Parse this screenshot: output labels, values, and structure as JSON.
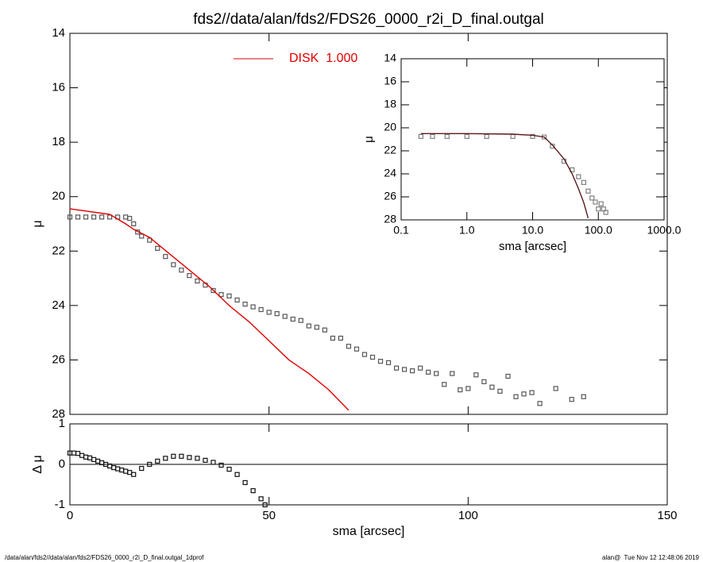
{
  "footer": {
    "left": "/data/alan/fds2//data/alan/fds2/FDS26_0000_r2i_D_final.outgal_1dprof",
    "right": "alan@  Tue Nov 12 12:48:06 2019"
  },
  "chart_data": [
    {
      "type": "line",
      "title": "fds2//data/alan/fds2/FDS26_0000_r2i_D_final.outgal",
      "ylabel": "μ",
      "xlim": [
        0,
        150
      ],
      "ylim": [
        28,
        14
      ],
      "yticks": [
        14,
        16,
        18,
        20,
        22,
        24,
        26,
        28
      ],
      "legend": "top",
      "series": [
        {
          "style": "square",
          "color": "#555555",
          "x": [
            0,
            2,
            4,
            6,
            8,
            10,
            12,
            14,
            15,
            16,
            17,
            18,
            20,
            22,
            24,
            26,
            28,
            30,
            32,
            34,
            36,
            38,
            40,
            42,
            44,
            46,
            48,
            50,
            52,
            54,
            56,
            58,
            60,
            62,
            64,
            66,
            68,
            70,
            72,
            74,
            76,
            78,
            80,
            82,
            84,
            86,
            88,
            90,
            92,
            94,
            96,
            98,
            100,
            102,
            104,
            106,
            108,
            110,
            112,
            114,
            116,
            118,
            122,
            126,
            129
          ],
          "values": [
            20.75,
            20.75,
            20.75,
            20.75,
            20.75,
            20.75,
            20.75,
            20.75,
            20.8,
            21.0,
            21.3,
            21.45,
            21.6,
            21.9,
            22.2,
            22.5,
            22.7,
            22.9,
            23.1,
            23.25,
            23.45,
            23.6,
            23.65,
            23.8,
            23.95,
            24.05,
            24.15,
            24.25,
            24.3,
            24.4,
            24.5,
            24.55,
            24.75,
            24.8,
            24.9,
            25.2,
            25.2,
            25.5,
            25.6,
            25.8,
            25.9,
            26.05,
            26.1,
            26.3,
            26.35,
            26.4,
            26.3,
            26.45,
            26.5,
            26.9,
            26.5,
            27.1,
            27.05,
            26.55,
            26.8,
            27.0,
            27.15,
            26.6,
            27.35,
            27.25,
            27.2,
            27.6,
            27.05,
            27.45,
            27.35
          ]
        },
        {
          "name": "DISK  1.000",
          "style": "line",
          "color": "#e00000",
          "x": [
            0,
            5,
            10,
            14,
            16,
            20,
            25,
            30,
            35,
            40,
            45,
            50,
            55,
            60,
            65,
            70
          ],
          "values": [
            20.45,
            20.55,
            20.65,
            21.0,
            21.2,
            21.5,
            22.1,
            22.7,
            23.3,
            24.0,
            24.6,
            25.3,
            26.0,
            26.5,
            27.1,
            27.85
          ]
        }
      ]
    },
    {
      "type": "line",
      "xlog": true,
      "ylabel": "μ",
      "xlabel": "sma [arcsec]",
      "xlim": [
        0.1,
        1000
      ],
      "xticks": [
        0.1,
        {
          "value": 1,
          "label": "1.0"
        },
        {
          "value": 10,
          "label": "10.0"
        },
        {
          "value": 100,
          "label": "100.0"
        },
        {
          "value": 1000,
          "label": "1000.0"
        }
      ],
      "ylim": [
        28,
        14
      ],
      "yticks": [
        14,
        16,
        18,
        20,
        22,
        24,
        26,
        28
      ],
      "series": [
        {
          "style": "square",
          "color": "#808080",
          "x": [
            0.2,
            0.3,
            0.5,
            1,
            2,
            5,
            10,
            15,
            20,
            30,
            40,
            50,
            60,
            70,
            80,
            90,
            100,
            110,
            120,
            130
          ],
          "values": [
            20.75,
            20.75,
            20.75,
            20.75,
            20.75,
            20.75,
            20.75,
            20.8,
            21.6,
            22.9,
            23.65,
            24.25,
            24.75,
            25.5,
            26.1,
            26.45,
            27.05,
            26.6,
            27.05,
            27.35
          ]
        },
        {
          "style": "line",
          "color": "#5a1a1a",
          "x": [
            0.2,
            1,
            5,
            10,
            15,
            20,
            30,
            40,
            50,
            60,
            70
          ],
          "values": [
            20.5,
            20.5,
            20.55,
            20.65,
            20.8,
            21.5,
            22.7,
            24.0,
            25.3,
            26.5,
            27.85
          ]
        }
      ]
    },
    {
      "type": "line",
      "ylabel": "Δ μ",
      "xlabel": "sma [arcsec]",
      "xlim": [
        0,
        150
      ],
      "xticks": [
        0,
        50,
        100,
        150
      ],
      "ylim": [
        -1,
        1
      ],
      "yticks": [
        1,
        0,
        -1
      ],
      "zero_line": true,
      "series": [
        {
          "style": "square",
          "color": "#111111",
          "x": [
            0,
            1,
            2,
            3,
            4,
            5,
            6,
            7,
            8,
            9,
            10,
            11,
            12,
            13,
            14,
            15,
            16,
            18,
            20,
            22,
            24,
            26,
            28,
            30,
            32,
            34,
            36,
            38,
            40,
            42,
            44,
            46,
            48,
            49
          ],
          "values": [
            0.28,
            0.28,
            0.27,
            0.22,
            0.18,
            0.16,
            0.12,
            0.08,
            0.04,
            0.0,
            -0.04,
            -0.08,
            -0.11,
            -0.14,
            -0.17,
            -0.2,
            -0.25,
            -0.1,
            0.0,
            0.08,
            0.15,
            0.2,
            0.2,
            0.17,
            0.15,
            0.1,
            0.05,
            -0.02,
            -0.12,
            -0.25,
            -0.45,
            -0.65,
            -0.85,
            -1.0
          ]
        }
      ]
    }
  ]
}
